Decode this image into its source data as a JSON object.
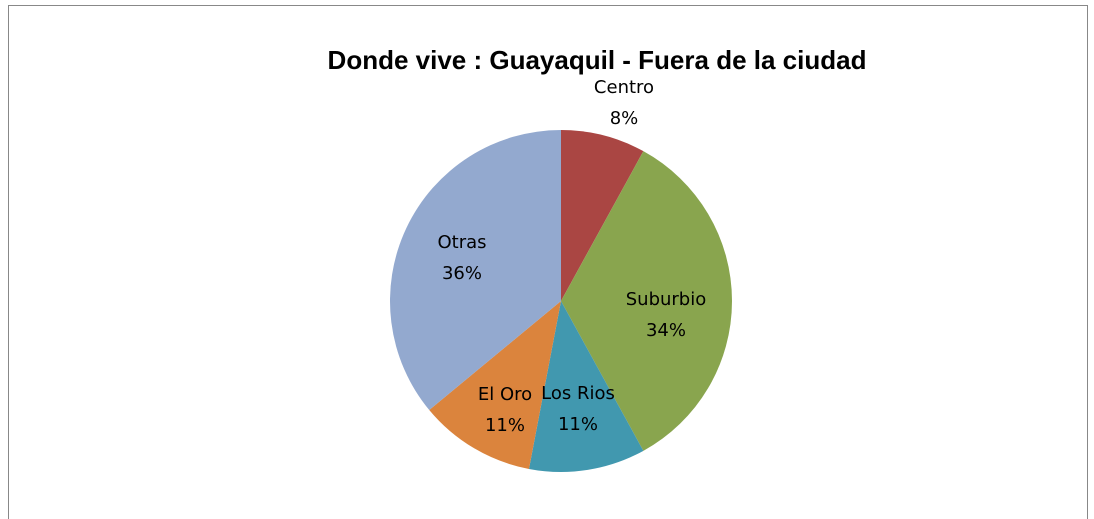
{
  "chart_data": {
    "type": "pie",
    "title": "Donde vive : Guayaquil - Fuera de la ciudad",
    "categories": [
      "Centro",
      "Suburbio",
      "Los Rios",
      "El Oro",
      "Otras"
    ],
    "values": [
      8,
      34,
      11,
      11,
      36
    ],
    "value_labels": [
      "8%",
      "34%",
      "11%",
      "11%",
      "36%"
    ],
    "colors": [
      "#aa4643",
      "#89a54e",
      "#4198af",
      "#db843d",
      "#93a9cf"
    ]
  }
}
